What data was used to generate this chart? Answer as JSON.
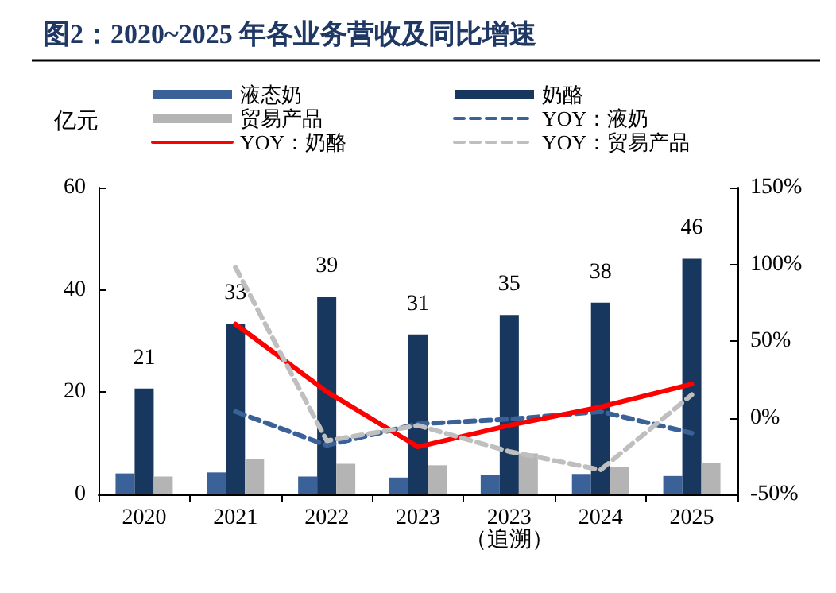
{
  "chart_data": {
    "type": "bar",
    "title": "图2：2020~2025 年各业务营收及同比增速",
    "ylabel": "亿元",
    "categories": [
      "2020",
      "2021",
      "2022",
      "2023",
      "2023\n（追溯）",
      "2024",
      "2025"
    ],
    "series": [
      {
        "name": "液态奶",
        "color": "#3a6299",
        "values": [
          4.1,
          4.3,
          3.5,
          3.3,
          3.8,
          4.0,
          3.6
        ]
      },
      {
        "name": "奶酪",
        "color": "#17375e",
        "values": [
          20.7,
          33.4,
          38.7,
          31.3,
          35.1,
          37.5,
          46.1
        ],
        "value_labels": [
          "21",
          "33",
          "39",
          "31",
          "35",
          "38",
          "46"
        ]
      },
      {
        "name": "贸易产品",
        "color": "#b4b4b4",
        "values": [
          3.5,
          7.0,
          6.0,
          5.7,
          8.0,
          5.4,
          6.2
        ]
      },
      {
        "name": "YOY：液奶",
        "type": "line",
        "axis": "y2",
        "line_style": "dashed",
        "color": "#3a6299",
        "values": [
          null,
          4,
          -18,
          -4,
          -1,
          4,
          -10
        ]
      },
      {
        "name": "YOY：奶酪",
        "type": "line",
        "axis": "y2",
        "line_style": "solid",
        "color": "#ff0000",
        "values": [
          null,
          61,
          17,
          -19,
          -5,
          7,
          22
        ]
      },
      {
        "name": "YOY：贸易产品",
        "type": "line",
        "axis": "y2",
        "line_style": "dashed",
        "color": "#bfbfbf",
        "values": [
          null,
          98,
          -15,
          -5,
          -22,
          -34,
          15
        ]
      }
    ],
    "ylim": [
      0,
      60
    ],
    "yticks": [
      0,
      20,
      40,
      60
    ],
    "y2lim": [
      -50,
      150
    ],
    "y2ticks": [
      {
        "value": -50,
        "label": "-50%"
      },
      {
        "value": 0,
        "label": "0%"
      },
      {
        "value": 50,
        "label": "50%"
      },
      {
        "value": 100,
        "label": "100%"
      },
      {
        "value": 150,
        "label": "150%"
      }
    ],
    "grid": false,
    "legend": "top",
    "marker": "none"
  }
}
